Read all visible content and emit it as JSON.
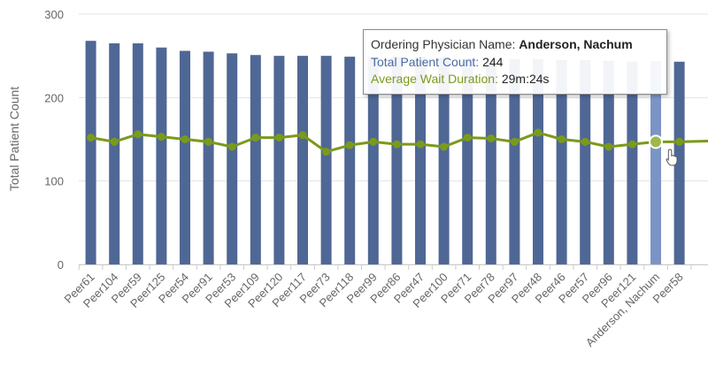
{
  "chart_data": {
    "type": "bar",
    "categories": [
      "Peer61",
      "Peer104",
      "Peer59",
      "Peer125",
      "Peer54",
      "Peer91",
      "Peer53",
      "Peer109",
      "Peer120",
      "Peer117",
      "Peer73",
      "Peer118",
      "Peer99",
      "Peer86",
      "Peer47",
      "Peer100",
      "Peer71",
      "Peer78",
      "Peer97",
      "Peer48",
      "Peer46",
      "Peer57",
      "Peer96",
      "Peer121",
      "Anderson, Nachum",
      "Peer58"
    ],
    "series": [
      {
        "name": "Total Patient Count",
        "kind": "bar",
        "values": [
          268,
          265,
          265,
          260,
          256,
          255,
          253,
          251,
          250,
          250,
          250,
          249,
          249,
          249,
          248,
          248,
          247,
          246,
          246,
          246,
          245,
          245,
          244,
          243,
          244,
          243
        ]
      },
      {
        "name": "Average Wait Duration",
        "kind": "line",
        "values": [
          152,
          147,
          156,
          153,
          150,
          147,
          141,
          152,
          152,
          155,
          135,
          143,
          147,
          144,
          144,
          141,
          152,
          151,
          147,
          158,
          150,
          147,
          141,
          144,
          147,
          147
        ]
      }
    ],
    "title": "",
    "xlabel": "",
    "ylabel": "Total Patient Count",
    "ylim": [
      0,
      300
    ],
    "yticks": [
      0,
      100,
      200,
      300
    ],
    "grid": true,
    "highlighted_category": "Anderson, Nachum",
    "colors": {
      "bar": "#4f6795",
      "bar_highlight": "#7b94c6",
      "line": "#7a9a1a",
      "line_point_fill": "#9fb84a",
      "grid": "#e3e3e3",
      "axis_text": "#666666"
    }
  },
  "tooltip": {
    "physician_label": "Ordering Physician Name: ",
    "physician_value": "Anderson, Nachum",
    "count_label": "Total Patient Count: ",
    "count_value": "244",
    "wait_label": "Average Wait Duration: ",
    "wait_value": "29m:24s"
  }
}
